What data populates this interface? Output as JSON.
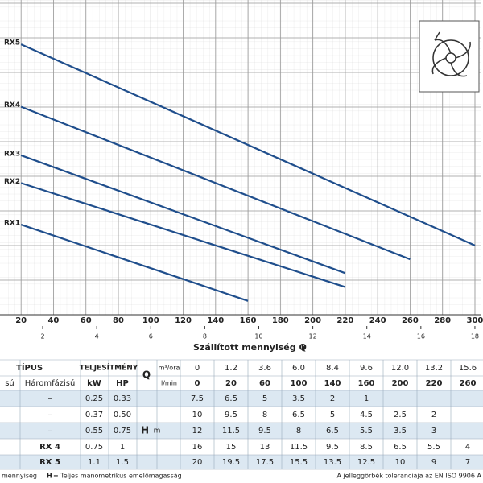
{
  "chart_data": {
    "type": "line",
    "xlabel": "Szállított mennyiség Q",
    "xlim": [
      7,
      304
    ],
    "xticks": [
      20,
      40,
      60,
      80,
      100,
      120,
      140,
      160,
      180,
      200,
      220,
      240,
      260,
      280,
      300
    ],
    "x2lim": [
      0.42,
      18.24
    ],
    "x2ticks": [
      2,
      4,
      6,
      8,
      10,
      12,
      14,
      16,
      18
    ],
    "ylim": [
      0,
      22.7
    ],
    "grid": true,
    "series": [
      {
        "name": "RX5",
        "color": "#1f4e8c",
        "x": [
          20,
          300
        ],
        "values": [
          19.5,
          5
        ]
      },
      {
        "name": "RX4",
        "color": "#1f4e8c",
        "x": [
          20,
          260
        ],
        "values": [
          15,
          4
        ]
      },
      {
        "name": "RX3",
        "color": "#1f4e8c",
        "x": [
          20,
          220
        ],
        "values": [
          11.5,
          3
        ]
      },
      {
        "name": "RX2",
        "color": "#1f4e8c",
        "x": [
          20,
          220
        ],
        "values": [
          9.5,
          2
        ]
      },
      {
        "name": "RX1",
        "color": "#1f4e8c",
        "x": [
          20,
          160
        ],
        "values": [
          6.5,
          1
        ]
      }
    ]
  },
  "table": {
    "type_title": "TÍPUS",
    "col1": "sú",
    "col2": "Háromfázisú",
    "power": "TELJESÍTMÉNY",
    "kw": "kW",
    "hp": "HP",
    "q": "Q",
    "q_unit1": "m³/óra",
    "q_unit2": "l/min",
    "h": "H",
    "h_unit": "m",
    "q_m3h": [
      "0",
      "1.2",
      "3.6",
      "6.0",
      "8.4",
      "9.6",
      "12.0",
      "13.2",
      "15.6"
    ],
    "q_lmin": [
      "0",
      "20",
      "60",
      "100",
      "140",
      "160",
      "200",
      "220",
      "260"
    ],
    "rows": [
      {
        "name": "–",
        "kw": "0.25",
        "hp": "0.33",
        "h": [
          "7.5",
          "6.5",
          "5",
          "3.5",
          "2",
          "1"
        ]
      },
      {
        "name": "–",
        "kw": "0.37",
        "hp": "0.50",
        "h": [
          "10",
          "9.5",
          "8",
          "6.5",
          "5",
          "4.5",
          "2.5",
          "2"
        ]
      },
      {
        "name": "–",
        "kw": "0.55",
        "hp": "0.75",
        "h": [
          "12",
          "11.5",
          "9.5",
          "8",
          "6.5",
          "5.5",
          "3.5",
          "3"
        ]
      },
      {
        "name": "RX 4",
        "kw": "0.75",
        "hp": "1",
        "h": [
          "16",
          "15",
          "13",
          "11.5",
          "9.5",
          "8.5",
          "6.5",
          "5.5",
          "4"
        ]
      },
      {
        "name": "RX 5",
        "kw": "1.1",
        "hp": "1.5",
        "h": [
          "20",
          "19.5",
          "17.5",
          "15.5",
          "13.5",
          "12.5",
          "10",
          "9",
          "7"
        ]
      }
    ]
  },
  "footer": {
    "left_a": "mennyiség",
    "left_h": "H",
    "left_b": "= Teljes manometrikus emelőmagasság",
    "right": "A jelleggörbék toleranciája az EN ISO 9906 A"
  }
}
